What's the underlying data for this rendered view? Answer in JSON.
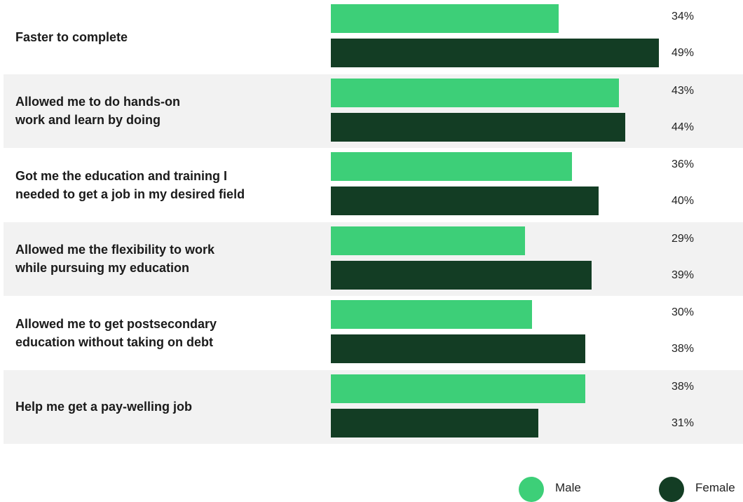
{
  "colors": {
    "male": "#3dcf78",
    "female": "#133d24",
    "row_shade": "#f2f2f2"
  },
  "legend": {
    "male_label": "Male",
    "female_label": "Female"
  },
  "chart_data": {
    "type": "bar",
    "orientation": "horizontal",
    "xlim": [
      0,
      49
    ],
    "grid": false,
    "legend_position": "bottom-right",
    "categories": [
      "Faster to complete",
      "Allowed me to do hands-on\nwork and learn by doing",
      "Got me the education and training I\nneeded to get a job in my desired field",
      "Allowed me the flexibility to work\nwhile pursuing my education",
      "Allowed me to get postsecondary\neducation without taking on debt",
      "Help me get a pay-welling job"
    ],
    "series": [
      {
        "name": "Male",
        "values": [
          34,
          43,
          36,
          29,
          30,
          38
        ],
        "labels": [
          "34%",
          "43%",
          "36%",
          "29%",
          "30%",
          "38%"
        ]
      },
      {
        "name": "Female",
        "values": [
          49,
          44,
          40,
          39,
          38,
          31
        ],
        "labels": [
          "49%",
          "44%",
          "40%",
          "39%",
          "38%",
          "31%"
        ]
      }
    ]
  }
}
